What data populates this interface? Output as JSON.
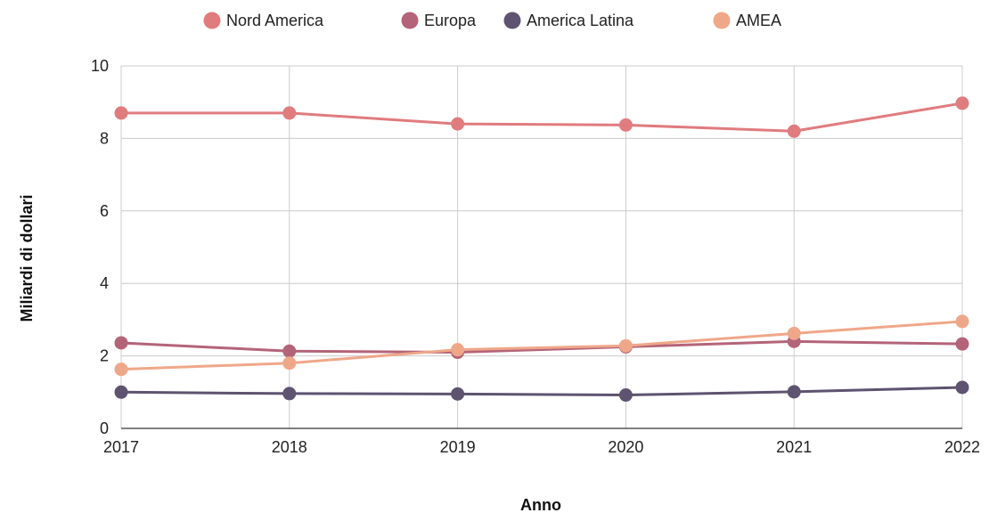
{
  "chart_data": {
    "type": "line",
    "title": "",
    "xlabel": "Anno",
    "ylabel": "Miliardi di dollari",
    "x": [
      "2017",
      "2018",
      "2019",
      "2020",
      "2021",
      "2022"
    ],
    "ylim": [
      0,
      10
    ],
    "yticks": [
      "0",
      "2",
      "4",
      "6",
      "8",
      "10"
    ],
    "grid": true,
    "legend_position": "top",
    "series": [
      {
        "name": "Nord America",
        "color": "#e07b7e",
        "values": [
          8.7,
          8.7,
          8.4,
          8.37,
          8.2,
          8.97
        ]
      },
      {
        "name": "Europa",
        "color": "#b46479",
        "values": [
          2.36,
          2.13,
          2.1,
          2.25,
          2.4,
          2.33
        ]
      },
      {
        "name": "America Latina",
        "color": "#5e5370",
        "values": [
          1.0,
          0.96,
          0.95,
          0.92,
          1.01,
          1.13
        ]
      },
      {
        "name": "AMEA",
        "color": "#efa789",
        "values": [
          1.63,
          1.8,
          2.17,
          2.28,
          2.62,
          2.95
        ]
      }
    ]
  }
}
